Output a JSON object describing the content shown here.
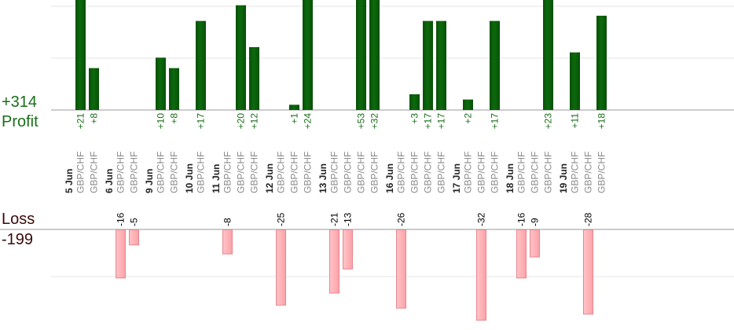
{
  "summary": {
    "profit_total": "+314",
    "profit_label": "Profit",
    "loss_label": "Loss",
    "loss_total": "-199"
  },
  "colors": {
    "profit_bar": "#0b6b0b",
    "profit_text": "#1a6e1a",
    "loss_bar": "#ffb3b8",
    "loss_bar_border": "#e8868e",
    "date_text": "#222222",
    "pair_text": "#8a8a8a",
    "grid": "#e6e6e6",
    "baseline": "#999999"
  },
  "chart_data": {
    "type": "bar",
    "grid": true,
    "profit_ylim": [
      0,
      21
    ],
    "loss_ylim": [
      -30,
      0
    ],
    "days": [
      {
        "date": "5 Jun",
        "trades": [
          {
            "pair": "GBP/CHF",
            "value": 21
          },
          {
            "pair": "GBP/CHF",
            "value": 8
          }
        ]
      },
      {
        "date": "6 Jun",
        "trades": [
          {
            "pair": "GBP/CHF",
            "value": -16
          },
          {
            "pair": "GBP/CHF",
            "value": -5
          }
        ]
      },
      {
        "date": "9 Jun",
        "trades": [
          {
            "pair": "GBP/CHF",
            "value": 10
          },
          {
            "pair": "GBP/CHF",
            "value": 8
          }
        ]
      },
      {
        "date": "10 Jun",
        "trades": [
          {
            "pair": "GBP/CHF",
            "value": 17
          }
        ]
      },
      {
        "date": "11 Jun",
        "trades": [
          {
            "pair": "GBP/CHF",
            "value": -8
          },
          {
            "pair": "GBP/CHF",
            "value": 20
          },
          {
            "pair": "GBP/CHF",
            "value": 12
          }
        ]
      },
      {
        "date": "12 Jun",
        "trades": [
          {
            "pair": "GBP/CHF",
            "value": -25
          },
          {
            "pair": "GBP/CHF",
            "value": 1
          },
          {
            "pair": "GBP/CHF",
            "value": 24
          }
        ]
      },
      {
        "date": "13 Jun",
        "trades": [
          {
            "pair": "GBP/CHF",
            "value": -21
          },
          {
            "pair": "GBP/CHF",
            "value": -13
          },
          {
            "pair": "GBP/CHF",
            "value": 53
          },
          {
            "pair": "GBP/CHF",
            "value": 32
          }
        ]
      },
      {
        "date": "16 Jun",
        "trades": [
          {
            "pair": "GBP/CHF",
            "value": -26
          },
          {
            "pair": "GBP/CHF",
            "value": 3
          },
          {
            "pair": "GBP/CHF",
            "value": 17
          },
          {
            "pair": "GBP/CHF",
            "value": 17
          }
        ]
      },
      {
        "date": "17 Jun",
        "trades": [
          {
            "pair": "GBP/CHF",
            "value": 2
          },
          {
            "pair": "GBP/CHF",
            "value": -32
          },
          {
            "pair": "GBP/CHF",
            "value": 17
          }
        ]
      },
      {
        "date": "18 Jun",
        "trades": [
          {
            "pair": "GBP/CHF",
            "value": -16
          },
          {
            "pair": "GBP/CHF",
            "value": -9
          },
          {
            "pair": "GBP/CHF",
            "value": 23
          }
        ]
      },
      {
        "date": "19 Jun",
        "trades": [
          {
            "pair": "GBP/CHF",
            "value": 11
          },
          {
            "pair": "GBP/CHF",
            "value": -28
          },
          {
            "pair": "GBP/CHF",
            "value": 18
          }
        ]
      }
    ]
  }
}
